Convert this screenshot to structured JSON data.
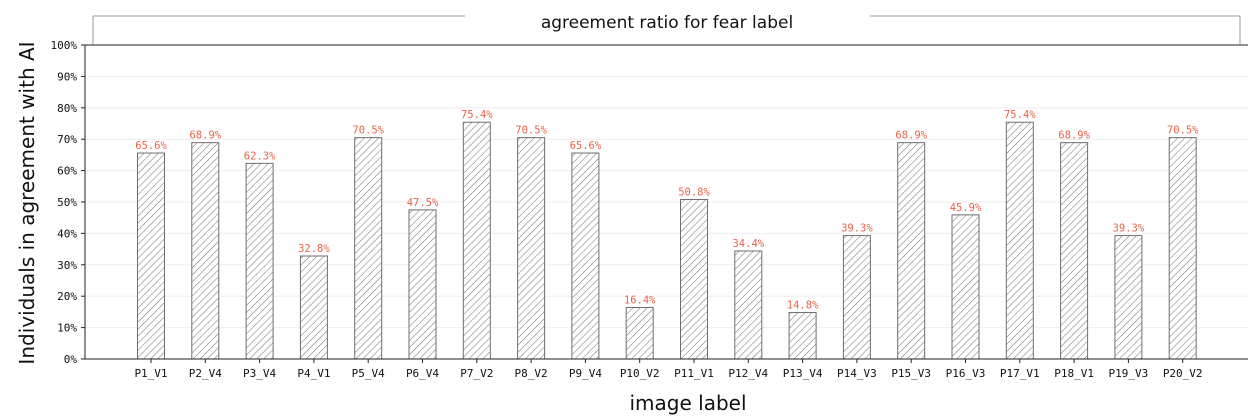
{
  "chart_data": {
    "type": "bar",
    "title": "agreement ratio for fear label",
    "xlabel": "image label",
    "ylabel": "Individuals in agreement with AI",
    "ylim": [
      0,
      100
    ],
    "yticks": [
      "0%",
      "10%",
      "20%",
      "30%",
      "40%",
      "50%",
      "60%",
      "70%",
      "80%",
      "90%",
      "100%"
    ],
    "categories": [
      "P1_V1",
      "P2_V4",
      "P3_V4",
      "P4_V1",
      "P5_V4",
      "P6_V4",
      "P7_V2",
      "P8_V2",
      "P9_V4",
      "P10_V2",
      "P11_V1",
      "P12_V4",
      "P13_V4",
      "P14_V3",
      "P15_V3",
      "P16_V3",
      "P17_V1",
      "P18_V1",
      "P19_V3",
      "P20_V2"
    ],
    "values": [
      65.6,
      68.9,
      62.3,
      32.8,
      70.5,
      47.5,
      75.4,
      70.5,
      65.6,
      16.4,
      50.8,
      34.4,
      14.8,
      39.3,
      68.9,
      45.9,
      75.4,
      68.9,
      39.3,
      70.5
    ],
    "value_labels": [
      "65.6%",
      "68.9%",
      "62.3%",
      "32.8%",
      "70.5%",
      "47.5%",
      "75.4%",
      "70.5%",
      "65.6%",
      "16.4%",
      "50.8%",
      "34.4%",
      "14.8%",
      "39.3%",
      "68.9%",
      "45.9%",
      "75.4%",
      "68.9%",
      "39.3%",
      "70.5%"
    ],
    "grid": true,
    "bar_hatch": "diagonal",
    "colors": {
      "bar_edge": "#6e6e6e",
      "hatch": "#7a7a7a",
      "value_label": "#e8644a",
      "grid": "#eeeeee",
      "axis": "#222222"
    }
  }
}
